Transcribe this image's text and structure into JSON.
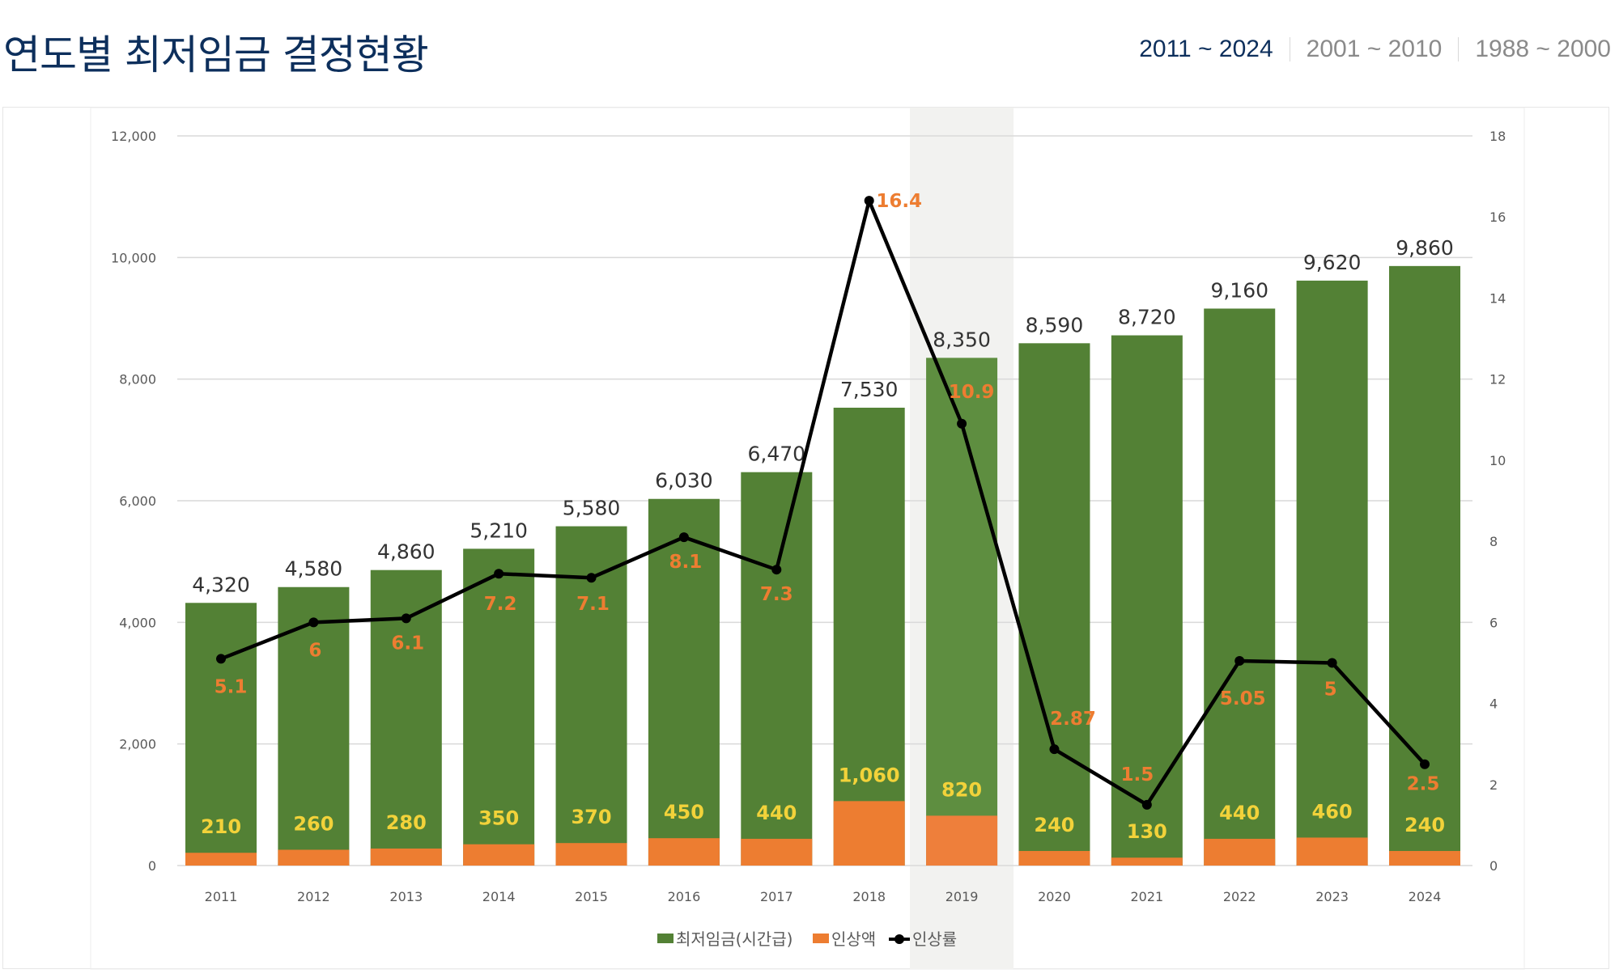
{
  "header": {
    "title": "연도별 최저임금 결정현황",
    "tabs": [
      {
        "label": "2011 ~ 2024",
        "active": true
      },
      {
        "label": "2001 ~ 2010",
        "active": false
      },
      {
        "label": "1988 ~ 2000",
        "active": false
      }
    ]
  },
  "chart_data": {
    "type": "bar",
    "stacked_bars_with_line": true,
    "categories": [
      "2011",
      "2012",
      "2013",
      "2014",
      "2015",
      "2016",
      "2017",
      "2018",
      "2019",
      "2020",
      "2021",
      "2022",
      "2023",
      "2024"
    ],
    "highlighted_category": "2019",
    "series": [
      {
        "name": "최저임금(시간급)",
        "type": "bar",
        "axis": "left",
        "color": "#538135",
        "values": [
          4320,
          4580,
          4860,
          5210,
          5580,
          6030,
          6470,
          7530,
          8350,
          8590,
          8720,
          9160,
          9620,
          9860
        ],
        "labels": [
          "4,320",
          "4,580",
          "4,860",
          "5,210",
          "5,580",
          "6,030",
          "6,470",
          "7,530",
          "8,350",
          "8,590",
          "8,720",
          "9,160",
          "9,620",
          "9,860"
        ]
      },
      {
        "name": "인상액",
        "type": "bar",
        "axis": "left",
        "color": "#ed7d31",
        "values": [
          210,
          260,
          280,
          350,
          370,
          450,
          440,
          1060,
          820,
          240,
          130,
          440,
          460,
          240
        ],
        "labels": [
          "210",
          "260",
          "280",
          "350",
          "370",
          "450",
          "440",
          "1,060",
          "820",
          "240",
          "130",
          "440",
          "460",
          "240"
        ]
      },
      {
        "name": "인상률",
        "type": "line",
        "axis": "right",
        "color": "#000000",
        "values": [
          5.1,
          6,
          6.1,
          7.2,
          7.1,
          8.1,
          7.3,
          16.4,
          10.9,
          2.87,
          1.5,
          5.05,
          5,
          2.5
        ],
        "labels": [
          "5.1",
          "6",
          "6.1",
          "7.2",
          "7.1",
          "8.1",
          "7.3",
          "16.4",
          "10.9",
          "2.87",
          "1.5",
          "5.05",
          "5",
          "2.5"
        ]
      }
    ],
    "y_left": {
      "range": [
        0,
        12000
      ],
      "ticks": [
        "0",
        "2,000",
        "4,000",
        "6,000",
        "8,000",
        "10,000",
        "12,000"
      ]
    },
    "y_right": {
      "range": [
        0,
        18
      ],
      "ticks": [
        "0",
        "2",
        "4",
        "6",
        "8",
        "10",
        "12",
        "14",
        "16",
        "18"
      ]
    },
    "grid": true,
    "legend_position": "bottom",
    "colors": {
      "bar_label": "#333333",
      "increase_label": "#f2d23a",
      "rate_label": "#ed7d31",
      "highlight": "#f2f2f0"
    }
  }
}
